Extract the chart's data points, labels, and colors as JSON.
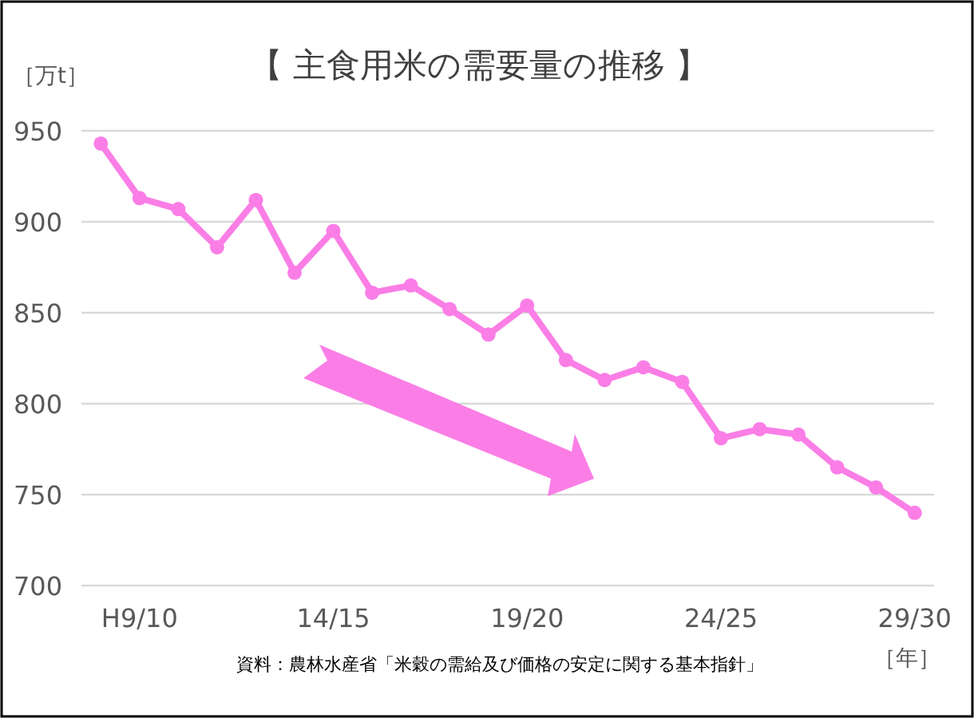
{
  "chart_data": {
    "type": "line",
    "title": "【 主食用米の需要量の推移 】",
    "ylabel": "［万t］",
    "xlabel": "［年］",
    "annotations": [
      "資料：農林水産省「米穀の需給及び価格の安定に関する基本指針」"
    ],
    "categories": [
      null,
      "H9/10",
      null,
      null,
      null,
      null,
      "14/15",
      null,
      null,
      null,
      null,
      "19/20",
      null,
      null,
      null,
      null,
      "24/25",
      null,
      null,
      null,
      null,
      "29/30"
    ],
    "series": [
      {
        "color": "#fa7ee6",
        "values": [
          943,
          913,
          907,
          886,
          912,
          872,
          895,
          861,
          865,
          852,
          838,
          854,
          824,
          813,
          820,
          812,
          781,
          786,
          783,
          765,
          754,
          740
        ]
      }
    ],
    "ylim": [
      700,
      950
    ],
    "yticks": [
      700,
      750,
      800,
      850,
      900,
      950
    ],
    "grid": "y",
    "marker": "circle",
    "line_style": "solid"
  }
}
